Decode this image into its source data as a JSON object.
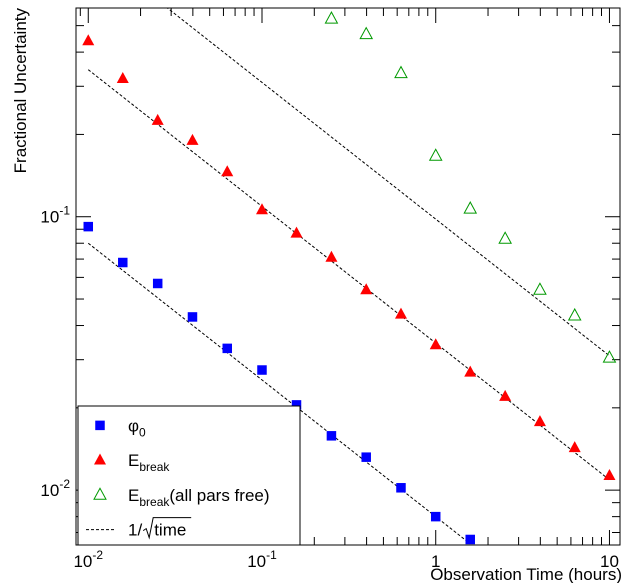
{
  "chart_data": {
    "type": "scatter",
    "title": "",
    "xlabel": "Observation Time (hours)",
    "ylabel": "Fractional Uncertainty",
    "xscale": "log",
    "yscale": "log",
    "xlim": [
      0.0085,
      11.5
    ],
    "ylim": [
      0.0063,
      0.58
    ],
    "grid": false,
    "legend_position": "bottom-left",
    "x_ticks": [
      {
        "value": 0.01,
        "base": "10",
        "exp": "-2"
      },
      {
        "value": 0.1,
        "base": "10",
        "exp": "-1"
      },
      {
        "value": 1,
        "base": "1",
        "exp": ""
      },
      {
        "value": 10,
        "base": "10",
        "exp": ""
      }
    ],
    "y_ticks": [
      {
        "value": 0.01,
        "base": "10",
        "exp": "-2"
      },
      {
        "value": 0.1,
        "base": "10",
        "exp": "-1"
      }
    ],
    "series": [
      {
        "name": "φ0",
        "marker": "square",
        "color": "#0000ff",
        "x": [
          0.01,
          0.0158,
          0.0251,
          0.0398,
          0.0631,
          0.1,
          0.158,
          0.251,
          0.398,
          0.631,
          1.0,
          1.58
        ],
        "y": [
          0.092,
          0.068,
          0.057,
          0.043,
          0.033,
          0.0275,
          0.0205,
          0.0158,
          0.0132,
          0.0102,
          0.008,
          0.0066
        ]
      },
      {
        "name": "Ebreak",
        "marker": "triangle",
        "color": "#ff0000",
        "x": [
          0.01,
          0.0158,
          0.0251,
          0.0398,
          0.0631,
          0.1,
          0.158,
          0.251,
          0.398,
          0.631,
          1.0,
          1.58,
          2.51,
          3.98,
          6.31,
          10.0
        ],
        "y": [
          0.44,
          0.32,
          0.225,
          0.19,
          0.146,
          0.106,
          0.087,
          0.071,
          0.054,
          0.044,
          0.034,
          0.027,
          0.022,
          0.0178,
          0.0143,
          0.0113
        ]
      },
      {
        "name": "Ebreak(all pars free)",
        "marker": "triangle-open",
        "color": "#009900",
        "x": [
          0.251,
          0.398,
          0.631,
          1.0,
          1.58,
          2.51,
          3.98,
          6.31,
          10.0
        ],
        "y": [
          0.53,
          0.465,
          0.335,
          0.167,
          0.107,
          0.083,
          0.054,
          0.0435,
          0.0305
        ]
      }
    ],
    "reference_lines": [
      {
        "name": "1/√time",
        "style": "dashed",
        "color": "#000000",
        "coef": 0.008,
        "x_range": [
          0.01,
          1.58
        ]
      },
      {
        "name": "1/√time",
        "style": "dashed",
        "color": "#000000",
        "coef": 0.0345,
        "x_range": [
          0.01,
          10.0
        ]
      },
      {
        "name": "1/√time",
        "style": "dashed",
        "color": "#000000",
        "coef": 0.098,
        "x_range": [
          0.028,
          10.0
        ]
      }
    ],
    "legend": [
      {
        "marker": "square",
        "color": "#0000ff",
        "text": "φ",
        "sub": "0",
        "tail": ""
      },
      {
        "marker": "triangle",
        "color": "#ff0000",
        "text": "E",
        "sub": "break",
        "tail": ""
      },
      {
        "marker": "triangle-open",
        "color": "#009900",
        "text": "E",
        "sub": "break",
        "tail": "(all pars free)"
      },
      {
        "marker": "line",
        "color": "#000000",
        "text": "1/",
        "sub": "",
        "tail": "",
        "radical": "time"
      }
    ]
  }
}
